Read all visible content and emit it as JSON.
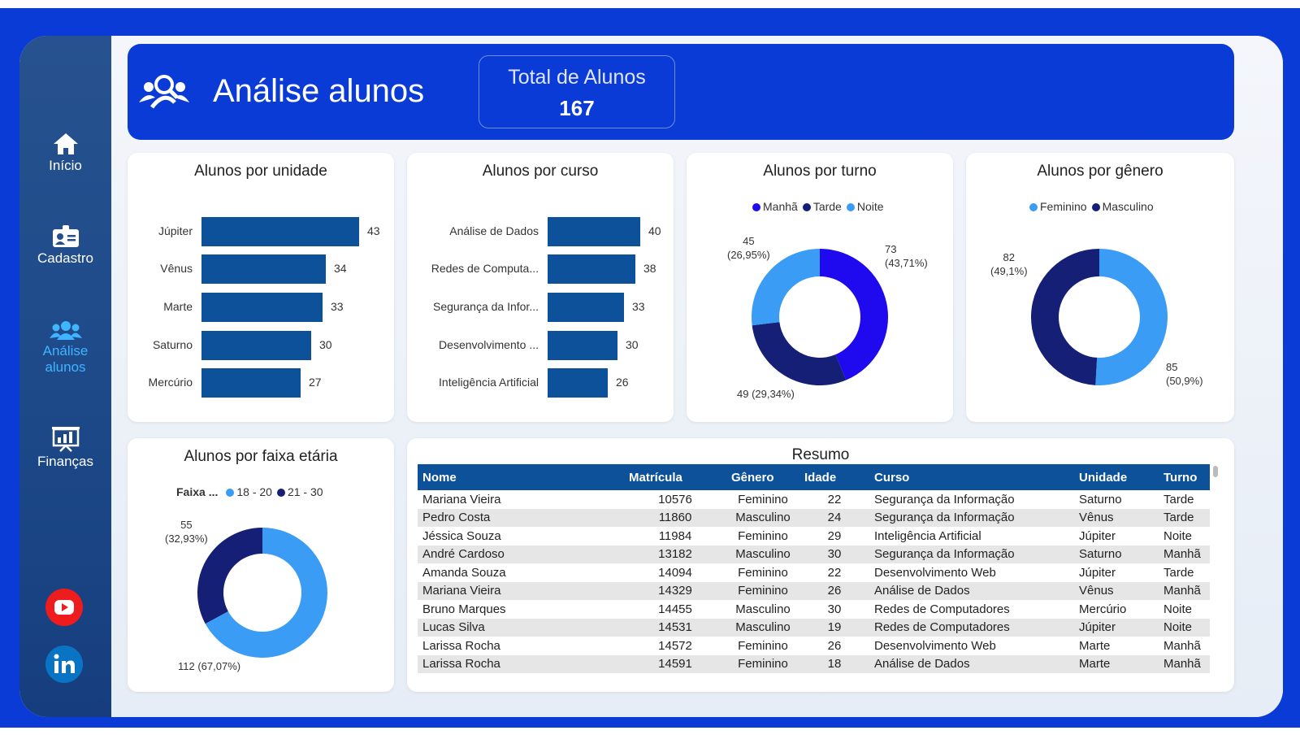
{
  "nav": {
    "items": [
      {
        "label": "Início",
        "icon": "home-icon"
      },
      {
        "label": "Cadastro",
        "icon": "id-card-icon"
      },
      {
        "label": "Análise alunos",
        "icon": "users-icon"
      },
      {
        "label": "Finanças",
        "icon": "presentation-chart-icon"
      }
    ],
    "active": "Análise alunos",
    "social": [
      "youtube-icon",
      "linkedin-icon"
    ]
  },
  "header": {
    "title": "Análise alunos",
    "icon": "users-search-icon",
    "kpi_label": "Total de Alunos",
    "kpi_value": "167"
  },
  "colors": {
    "brand": "#0a3bd6",
    "bar": "#0c5199",
    "light_blue": "#3a9cf5",
    "navy": "#141f75",
    "manha": "#1f09ee"
  },
  "chart_data": [
    {
      "type": "bar",
      "title": "Alunos por unidade",
      "categories": [
        "Júpiter",
        "Vênus",
        "Marte",
        "Saturno",
        "Mercúrio"
      ],
      "values": [
        43,
        34,
        33,
        30,
        27
      ]
    },
    {
      "type": "bar",
      "title": "Alunos por curso",
      "categories": [
        "Análise de Dados",
        "Redes de Computa...",
        "Segurança da Infor...",
        "Desenvolvimento ...",
        "Inteligência Artificial"
      ],
      "values": [
        40,
        38,
        33,
        30,
        26
      ]
    },
    {
      "type": "pie",
      "title": "Alunos por turno",
      "legend": [
        "Manhã",
        "Tarde",
        "Noite"
      ],
      "values": [
        73,
        49,
        45
      ],
      "labels": [
        "73",
        "49 (29,34%)",
        "45"
      ],
      "pct": [
        "(43,71%)",
        "",
        "(26,95%)"
      ],
      "colors": [
        "#1f09ee",
        "#141f75",
        "#3a9cf5"
      ]
    },
    {
      "type": "pie",
      "title": "Alunos por gênero",
      "legend": [
        "Feminino",
        "Masculino"
      ],
      "values": [
        85,
        82
      ],
      "labels": [
        "85",
        "82"
      ],
      "pct": [
        "(50,9%)",
        "(49,1%)"
      ],
      "colors": [
        "#3a9cf5",
        "#141f75"
      ]
    },
    {
      "type": "pie",
      "title": "Alunos por faixa etária",
      "legend_title": "Faixa ...",
      "legend": [
        "18 - 20",
        "21 - 30"
      ],
      "values": [
        112,
        55
      ],
      "labels": [
        "112 (67,07%)",
        "55"
      ],
      "pct": [
        "",
        "(32,93%)"
      ],
      "colors": [
        "#3a9cf5",
        "#141f75"
      ]
    }
  ],
  "table": {
    "title": "Resumo",
    "columns": [
      "Nome",
      "Matrícula",
      "Gênero",
      "Idade",
      "Curso",
      "Unidade",
      "Turno"
    ],
    "rows": [
      [
        "Mariana Vieira",
        "10576",
        "Feminino",
        "22",
        "Segurança da Informação",
        "Saturno",
        "Tarde"
      ],
      [
        "Pedro Costa",
        "11860",
        "Masculino",
        "24",
        "Segurança da Informação",
        "Vênus",
        "Tarde"
      ],
      [
        "Jéssica Souza",
        "11984",
        "Feminino",
        "29",
        "Inteligência Artificial",
        "Júpiter",
        "Noite"
      ],
      [
        "André Cardoso",
        "13182",
        "Masculino",
        "30",
        "Segurança da Informação",
        "Saturno",
        "Manhã"
      ],
      [
        "Amanda Souza",
        "14094",
        "Feminino",
        "22",
        "Desenvolvimento Web",
        "Júpiter",
        "Tarde"
      ],
      [
        "Mariana Vieira",
        "14329",
        "Feminino",
        "26",
        "Análise de Dados",
        "Vênus",
        "Manhã"
      ],
      [
        "Bruno Marques",
        "14455",
        "Masculino",
        "30",
        "Redes de Computadores",
        "Mercúrio",
        "Noite"
      ],
      [
        "Lucas Silva",
        "14531",
        "Masculino",
        "19",
        "Redes de Computadores",
        "Júpiter",
        "Noite"
      ],
      [
        "Larissa Rocha",
        "14572",
        "Feminino",
        "26",
        "Desenvolvimento Web",
        "Marte",
        "Manhã"
      ],
      [
        "Larissa Rocha",
        "14591",
        "Feminino",
        "18",
        "Análise de Dados",
        "Marte",
        "Manhã"
      ]
    ]
  }
}
